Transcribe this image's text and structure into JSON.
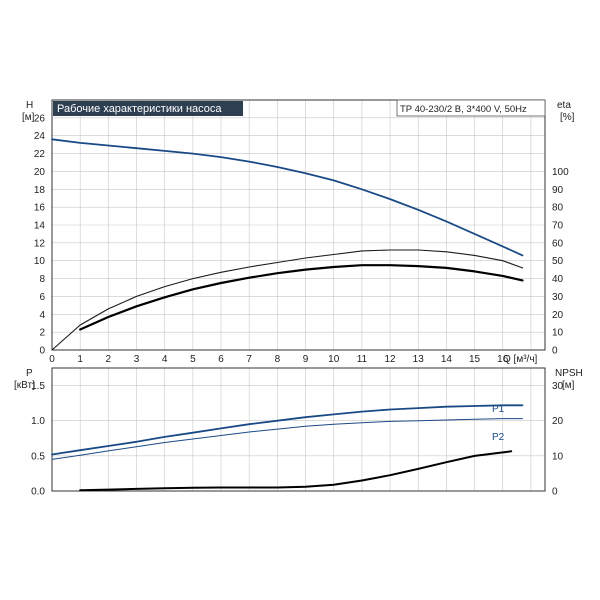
{
  "chart_data": [
    {
      "type": "line",
      "title": "Рабочие характеристики насоса",
      "model": "TP 40-230/2 B, 3*400 V, 50Hz",
      "y_label_left": "H",
      "y_unit_left": "[м]",
      "y_label_right": "eta",
      "y_unit_right": "[%]",
      "x_label": "Q [м³/ч]",
      "xlim": [
        0,
        17.5
      ],
      "ylim_left": [
        0,
        28
      ],
      "ylim_right": [
        0,
        140
      ],
      "x_ticks": [
        "0",
        "1",
        "2",
        "3",
        "4",
        "5",
        "6",
        "7",
        "8",
        "9",
        "10",
        "11",
        "12",
        "13",
        "14",
        "15",
        "16"
      ],
      "y_ticks_left": [
        "0",
        "2",
        "4",
        "6",
        "8",
        "10",
        "12",
        "14",
        "16",
        "18",
        "20",
        "22",
        "24",
        "26"
      ],
      "y_ticks_right": [
        "0",
        "10",
        "20",
        "30",
        "40",
        "50",
        "60",
        "70",
        "80",
        "90",
        "100"
      ],
      "grid": true,
      "series": [
        {
          "axis": "left",
          "color": "#1a4a86",
          "x": [
            0,
            1,
            2,
            3,
            4,
            5,
            6,
            7,
            8,
            9,
            10,
            11,
            12,
            13,
            14,
            15,
            16,
            16.7
          ],
          "y": [
            23.6,
            23.2,
            22.9,
            22.6,
            22.3,
            22.0,
            21.6,
            21.1,
            20.5,
            19.8,
            19.0,
            18.0,
            16.9,
            15.7,
            14.4,
            13.0,
            11.6,
            10.6
          ]
        },
        {
          "axis": "right",
          "color": "#1a1a1a",
          "x": [
            0,
            1,
            2,
            3,
            4,
            5,
            6,
            7,
            8,
            9,
            10,
            11,
            12,
            13,
            14,
            15,
            16,
            16.7
          ],
          "y": [
            0,
            14,
            23,
            30,
            35.5,
            40,
            43.5,
            46.5,
            49,
            51.5,
            53.5,
            55.5,
            56,
            56,
            55,
            53,
            50,
            46
          ]
        },
        {
          "axis": "right",
          "color": "#000000",
          "x": [
            1,
            2,
            3,
            4,
            5,
            6,
            7,
            8,
            9,
            10,
            11,
            12,
            13,
            14,
            15,
            16,
            16.7
          ],
          "y": [
            11.5,
            18.5,
            24.5,
            29.5,
            34,
            37.5,
            40.5,
            43,
            45,
            46.5,
            47.5,
            47.5,
            47,
            46,
            44,
            41.5,
            39
          ]
        }
      ]
    },
    {
      "type": "line",
      "y_label_left": "P",
      "y_unit_left": "[кВт]",
      "y_label_right": "NPSH",
      "y_unit_right": "[м]",
      "xlim": [
        0,
        17.5
      ],
      "ylim_left": [
        0,
        1.75
      ],
      "ylim_right": [
        0,
        35
      ],
      "y_ticks_left": [
        "0.0",
        "0.5",
        "1.0",
        "1.5"
      ],
      "y_ticks_right": [
        "0",
        "10",
        "20",
        "30"
      ],
      "grid": true,
      "series": [
        {
          "name": "P1",
          "axis": "left",
          "color": "#1a4a86",
          "x": [
            0,
            1,
            2,
            3,
            4,
            5,
            6,
            7,
            8,
            9,
            10,
            11,
            12,
            13,
            14,
            15,
            16,
            16.7
          ],
          "y": [
            0.52,
            0.58,
            0.64,
            0.7,
            0.77,
            0.83,
            0.89,
            0.95,
            1.0,
            1.05,
            1.09,
            1.13,
            1.16,
            1.18,
            1.2,
            1.21,
            1.22,
            1.22
          ]
        },
        {
          "name": "P2",
          "axis": "left",
          "color": "#1a4a86",
          "x": [
            0,
            1,
            2,
            3,
            4,
            5,
            6,
            7,
            8,
            9,
            10,
            11,
            12,
            13,
            14,
            15,
            16,
            16.7
          ],
          "y": [
            0.45,
            0.51,
            0.57,
            0.63,
            0.69,
            0.74,
            0.79,
            0.84,
            0.88,
            0.92,
            0.95,
            0.97,
            0.99,
            1.0,
            1.01,
            1.02,
            1.03,
            1.03
          ]
        },
        {
          "axis": "right",
          "color": "#000000",
          "x": [
            1,
            2,
            3,
            4,
            5,
            6,
            7,
            8,
            9,
            10,
            11,
            12,
            13,
            14,
            15,
            16.3
          ],
          "y": [
            0.2,
            0.4,
            0.6,
            0.8,
            0.9,
            1.0,
            1.0,
            1.0,
            1.2,
            1.8,
            3.0,
            4.5,
            6.3,
            8.2,
            10.0,
            11.3
          ]
        }
      ]
    }
  ]
}
